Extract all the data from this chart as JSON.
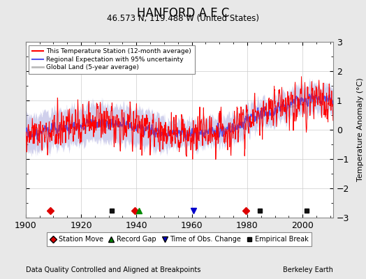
{
  "title": "HANFORD A E C",
  "subtitle": "46.573 N, 119.488 W (United States)",
  "ylabel": "Temperature Anomaly (°C)",
  "xlabel_note": "Data Quality Controlled and Aligned at Breakpoints",
  "credit": "Berkeley Earth",
  "xlim": [
    1900,
    2011
  ],
  "ylim": [
    -3,
    3
  ],
  "yticks": [
    -3,
    -2,
    -1,
    0,
    1,
    2,
    3
  ],
  "xticks": [
    1900,
    1920,
    1940,
    1960,
    1980,
    2000
  ],
  "legend_items": [
    {
      "label": "This Temperature Station (12-month average)",
      "color": "#ff0000",
      "lw": 1.2
    },
    {
      "label": "Regional Expectation with 95% uncertainty",
      "color": "#5555ee",
      "lw": 1.2
    },
    {
      "label": "Global Land (5-year average)",
      "color": "#bbbbbb",
      "lw": 2.0
    }
  ],
  "marker_items": [
    {
      "label": "Station Move",
      "marker": "D",
      "color": "#dd0000"
    },
    {
      "label": "Record Gap",
      "marker": "^",
      "color": "#008800"
    },
    {
      "label": "Time of Obs. Change",
      "marker": "v",
      "color": "#0000cc"
    },
    {
      "label": "Empirical Break",
      "marker": "s",
      "color": "#111111"
    }
  ],
  "station_moves": [
    1909.0,
    1939.5,
    1979.5
  ],
  "record_gaps": [
    1941.0
  ],
  "obs_changes": [
    1960.5
  ],
  "empirical_breaks": [
    1931.0,
    1984.5,
    2001.5
  ],
  "bg_color": "#e8e8e8",
  "plot_bg_color": "#ffffff",
  "uncertainty_color": "#aaaadd",
  "uncertainty_alpha": 0.55
}
